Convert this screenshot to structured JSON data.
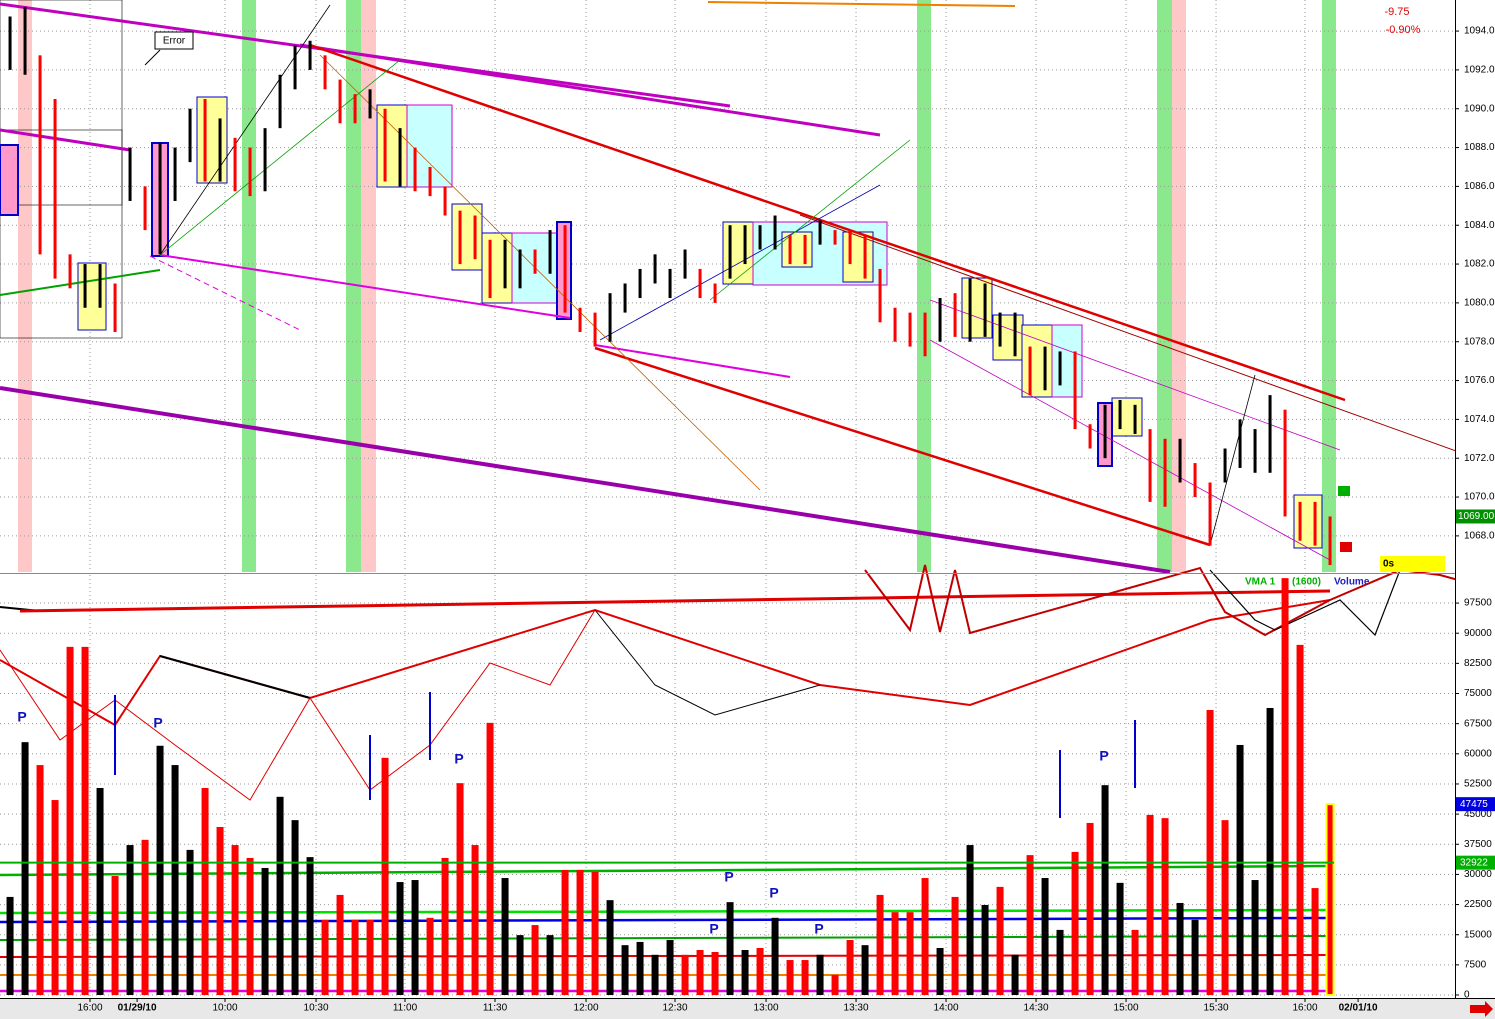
{
  "chart_data": [
    {
      "type": "ohlc",
      "net_change": "-9.75",
      "net_change_pct": "-0.90%",
      "annotation": "Error",
      "high": [
        1094.75,
        1095.25,
        1092.75,
        1090.5,
        1082.5,
        1082,
        1082,
        1081,
        1088,
        1086,
        1088.25,
        1088,
        1090,
        1090.5,
        1089.5,
        1088.5,
        1088,
        1089,
        1091.75,
        1093.25,
        1093.5,
        1092.75,
        1091.5,
        1090.75,
        1091,
        1090,
        1089,
        1088,
        1087,
        1086,
        1084.75,
        1084.5,
        1083.25,
        1083.25,
        1082.75,
        1082.75,
        1083.75,
        1084,
        1079.75,
        1079.5,
        1080.5,
        1081,
        1081.75,
        1082.5,
        1081.75,
        1082.75,
        1081.75,
        1081,
        1084,
        1084,
        1084,
        1084.5,
        1083.5,
        1083.5,
        1084.25,
        1083.75,
        1083.75,
        1083.5,
        1081.75,
        1079.75,
        1079.5,
        1079.5,
        1080.25,
        1080.5,
        1081.25,
        1081,
        1079.5,
        1079.5,
        1077.75,
        1077.75,
        1077.5,
        1077.5,
        1073.75,
        1074.75,
        1075,
        1074.75,
        1073.5,
        1073,
        1073,
        1071.75,
        1070.75,
        1072.5,
        1074,
        1073.5,
        1075.25,
        1074.5,
        1069.75,
        1069.75,
        1069
      ],
      "low": [
        1092,
        1091.75,
        1082.5,
        1081.25,
        1080.75,
        1079.75,
        1079.75,
        1078.5,
        1085.25,
        1083.75,
        1082.5,
        1085.25,
        1087.25,
        1086.25,
        1086.25,
        1085.75,
        1085.5,
        1085.75,
        1089,
        1091,
        1092,
        1091,
        1089.25,
        1089.25,
        1089.5,
        1086.25,
        1086,
        1085.75,
        1085.5,
        1084.5,
        1082,
        1082.25,
        1080.25,
        1080.75,
        1080.75,
        1081.5,
        1081.5,
        1079.5,
        1078.5,
        1077.75,
        1078,
        1079.5,
        1080.25,
        1081,
        1080.25,
        1081.25,
        1080.25,
        1080,
        1081.25,
        1082,
        1082.75,
        1082.75,
        1082,
        1082,
        1083,
        1083,
        1082,
        1081.25,
        1079,
        1078,
        1077.75,
        1077.25,
        1078,
        1078.25,
        1078,
        1078.25,
        1077.75,
        1077.25,
        1075.25,
        1075.5,
        1075.75,
        1073.5,
        1072.5,
        1072,
        1073.5,
        1073.25,
        1069.75,
        1069.5,
        1070.75,
        1070,
        1067.5,
        1070.75,
        1071.5,
        1071.25,
        1071.25,
        1069,
        1067.75,
        1067.5,
        1066.5
      ],
      "colors": [
        "black",
        "black",
        "red",
        "red",
        "red",
        "black",
        "black",
        "red",
        "black",
        "red",
        "black",
        "black",
        "black",
        "red",
        "black",
        "red",
        "red",
        "black",
        "black",
        "black",
        "black",
        "red",
        "red",
        "red",
        "black",
        "red",
        "black",
        "red",
        "red",
        "red",
        "red",
        "red",
        "red",
        "black",
        "black",
        "red",
        "black",
        "red",
        "red",
        "red",
        "black",
        "black",
        "black",
        "black",
        "black",
        "black",
        "red",
        "red",
        "black",
        "black",
        "black",
        "black",
        "red",
        "red",
        "black",
        "red",
        "red",
        "red",
        "red",
        "red",
        "red",
        "red",
        "black",
        "red",
        "black",
        "black",
        "black",
        "black",
        "red",
        "black",
        "black",
        "red",
        "red",
        "black",
        "black",
        "black",
        "red",
        "red",
        "black",
        "red",
        "red",
        "black",
        "black",
        "black",
        "black",
        "red",
        "red",
        "red",
        "red"
      ],
      "last_price": {
        "value": 1069,
        "label": "1069.00"
      },
      "xlim": [
        -0.67,
        96.33
      ],
      "ylim": [
        1066.14,
        1095.6
      ],
      "yticks": [
        {
          "value": 1068,
          "label": "1068.00"
        },
        {
          "value": 1070,
          "label": "1070.00"
        },
        {
          "value": 1072,
          "label": "1072.00"
        },
        {
          "value": 1074,
          "label": "1074.00"
        },
        {
          "value": 1076,
          "label": "1076.00"
        },
        {
          "value": 1078,
          "label": "1078.00"
        },
        {
          "value": 1080,
          "label": "1080.00"
        },
        {
          "value": 1082,
          "label": "1082.00"
        },
        {
          "value": 1084,
          "label": "1084.00"
        },
        {
          "value": 1086,
          "label": "1086.00"
        },
        {
          "value": 1088,
          "label": "1088.00"
        },
        {
          "value": 1090,
          "label": "1090.00"
        },
        {
          "value": 1092,
          "label": "1092.00"
        },
        {
          "value": 1094,
          "label": "1094.00"
        }
      ],
      "grid": true
    },
    {
      "type": "bar",
      "series": [
        {
          "name": "Volume",
          "values": [
            24400,
            62900,
            57200,
            48500,
            86600,
            86600,
            51500,
            29600,
            37300,
            38600,
            62000,
            57200,
            36100,
            51500,
            41800,
            37300,
            34100,
            31600,
            49300,
            43500,
            34300,
            18700,
            24900,
            18700,
            18700,
            59000,
            28100,
            28600,
            19200,
            34100,
            52700,
            37300,
            67700,
            29100,
            14900,
            17400,
            14900,
            31100,
            31100,
            30600,
            23600,
            12400,
            13200,
            10000,
            13700,
            10000,
            11200,
            10700,
            23100,
            11200,
            11700,
            19200,
            8700,
            8700,
            10000,
            5000,
            13700,
            12400,
            24900,
            20600,
            20600,
            29100,
            11700,
            24400,
            37300,
            22400,
            26900,
            10000,
            34800,
            29100,
            16200,
            35600,
            42800,
            52200,
            27900,
            16200,
            44800,
            44000,
            22900,
            18700,
            70900,
            43500,
            62200,
            28600,
            71400,
            103700,
            87100,
            26600,
            47475
          ],
          "colors": [
            "black",
            "black",
            "red",
            "red",
            "red",
            "red",
            "black",
            "red",
            "black",
            "red",
            "black",
            "black",
            "black",
            "red",
            "red",
            "red",
            "red",
            "black",
            "black",
            "black",
            "black",
            "red",
            "red",
            "red",
            "red",
            "red",
            "black",
            "black",
            "red",
            "red",
            "red",
            "red",
            "red",
            "black",
            "black",
            "red",
            "black",
            "red",
            "red",
            "red",
            "black",
            "black",
            "black",
            "black",
            "black",
            "red",
            "red",
            "red",
            "black",
            "black",
            "red",
            "black",
            "red",
            "red",
            "black",
            "red",
            "red",
            "black",
            "red",
            "red",
            "red",
            "red",
            "black",
            "red",
            "black",
            "black",
            "red",
            "black",
            "red",
            "black",
            "black",
            "red",
            "red",
            "black",
            "black",
            "red",
            "red",
            "red",
            "black",
            "black",
            "red",
            "red",
            "black",
            "black",
            "black",
            "red",
            "red",
            "red",
            "red"
          ]
        }
      ],
      "ma": {
        "name": "VMA 1",
        "period": "(1600)",
        "value": 32922,
        "color": "#00b000"
      },
      "timer": "0s",
      "pivot_label": "P",
      "xlim": [
        -0.67,
        96.33
      ],
      "xticks": [
        {
          "value": 5.33,
          "label": "16:00"
        },
        {
          "value": 8.47,
          "label": "01/29/10"
        },
        {
          "value": 14.33,
          "label": "10:00"
        },
        {
          "value": 20.4,
          "label": "10:30"
        },
        {
          "value": 26.33,
          "label": "11:00"
        },
        {
          "value": 32.33,
          "label": "11:30"
        },
        {
          "value": 38.4,
          "label": "12:00"
        },
        {
          "value": 44.33,
          "label": "12:30"
        },
        {
          "value": 50.4,
          "label": "13:00"
        },
        {
          "value": 56.4,
          "label": "13:30"
        },
        {
          "value": 62.4,
          "label": "14:00"
        },
        {
          "value": 68.4,
          "label": "14:30"
        },
        {
          "value": 74.4,
          "label": "15:00"
        },
        {
          "value": 80.4,
          "label": "15:30"
        },
        {
          "value": 86.33,
          "label": "16:00"
        },
        {
          "value": 89.87,
          "label": "02/01/10"
        }
      ],
      "ylim": [
        -1240,
        104480
      ],
      "yticks": [
        0,
        7500,
        15000,
        22500,
        30000,
        37500,
        45000,
        52500,
        60000,
        67500,
        75000,
        82500,
        90000,
        97500
      ],
      "grid": true
    }
  ]
}
